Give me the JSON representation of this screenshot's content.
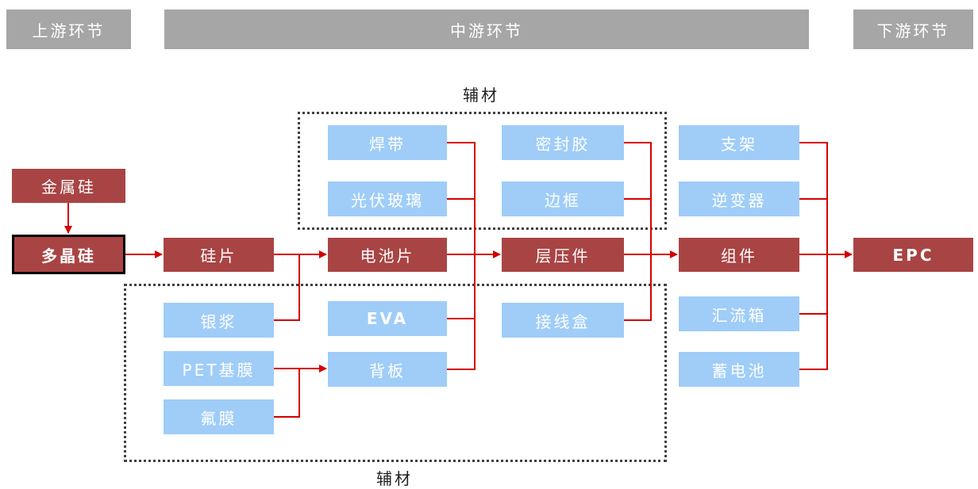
{
  "stages": {
    "upstream": "上游环节",
    "midstream": "中游环节",
    "downstream": "下游环节"
  },
  "aux_label_top": "辅材",
  "aux_label_bottom": "辅材",
  "nodes": {
    "metal_silicon": "金属硅",
    "polysilicon": "多晶硅",
    "wafer": "硅片",
    "cell": "电池片",
    "laminate": "层压件",
    "module": "组件",
    "epc": "EPC",
    "ribbon": "焊带",
    "pv_glass": "光伏玻璃",
    "sealant": "密封胶",
    "frame": "边框",
    "silver_paste": "银浆",
    "eva": "EVA",
    "junction_box": "接线盒",
    "pet_film": "PET基膜",
    "fluoro_film": "氟膜",
    "backsheet": "背板",
    "bracket": "支架",
    "inverter": "逆变器",
    "combiner_box": "汇流箱",
    "battery": "蓄电池"
  },
  "colors": {
    "header": "#a6a6a6",
    "core": "#a94444",
    "aux": "#9fcdf8",
    "arrow": "#d40000"
  }
}
